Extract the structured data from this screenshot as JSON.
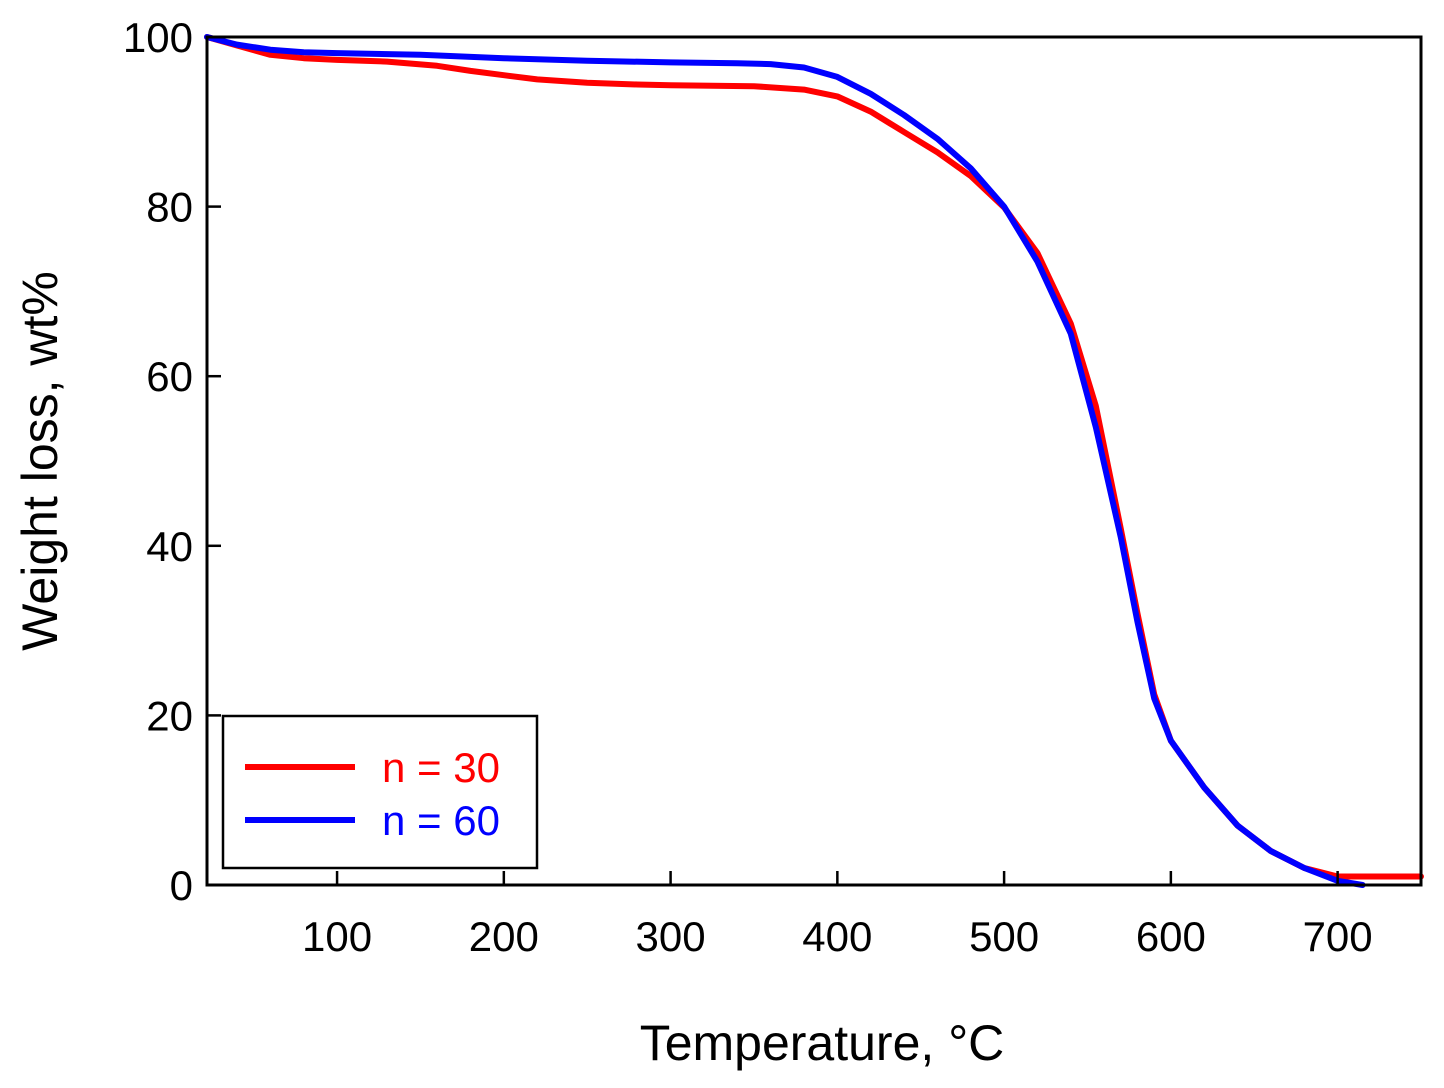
{
  "chart_data": {
    "type": "line",
    "title": "",
    "xlabel": "Temperature, ",
    "xlabel_unit": "°C",
    "ylabel": "Weight loss, wt%",
    "xlim": [
      22,
      750
    ],
    "ylim": [
      0,
      100
    ],
    "xticks": [
      100,
      200,
      300,
      400,
      500,
      600,
      700
    ],
    "yticks": [
      0,
      20,
      40,
      60,
      80,
      100
    ],
    "grid": false,
    "legend_position": "bottom-left",
    "colors": {
      "series_1": "#ff0000",
      "series_2": "#0000ff",
      "axis": "#000000"
    },
    "series": [
      {
        "name": "n = 30",
        "color": "#ff0000",
        "x": [
          22,
          40,
          60,
          80,
          100,
          130,
          160,
          180,
          200,
          220,
          250,
          280,
          300,
          350,
          380,
          400,
          420,
          440,
          460,
          480,
          500,
          520,
          540,
          555,
          570,
          580,
          590,
          600,
          620,
          640,
          660,
          680,
          700,
          750
        ],
        "y": [
          100,
          99,
          97.9,
          97.5,
          97.3,
          97.1,
          96.6,
          96.0,
          95.5,
          95.0,
          94.6,
          94.4,
          94.3,
          94.2,
          93.8,
          93.0,
          91.2,
          88.8,
          86.4,
          83.6,
          79.9,
          74.5,
          66.2,
          56.5,
          42.0,
          32.0,
          22.5,
          17.0,
          11.5,
          7.0,
          4.0,
          2.0,
          1.0,
          1.0
        ]
      },
      {
        "name": "n = 60",
        "color": "#0000ff",
        "x": [
          22,
          40,
          60,
          80,
          100,
          150,
          200,
          250,
          300,
          340,
          360,
          380,
          400,
          420,
          440,
          460,
          480,
          500,
          520,
          540,
          555,
          570,
          580,
          590,
          600,
          620,
          640,
          660,
          680,
          700,
          715
        ],
        "y": [
          100,
          99.1,
          98.5,
          98.2,
          98.1,
          97.9,
          97.5,
          97.2,
          97.0,
          96.9,
          96.8,
          96.4,
          95.3,
          93.3,
          90.8,
          88.0,
          84.5,
          80.0,
          73.5,
          65.0,
          54.0,
          41.0,
          31.0,
          22.0,
          17.0,
          11.5,
          7.0,
          4.0,
          2.0,
          0.5,
          0.0
        ]
      }
    ]
  }
}
